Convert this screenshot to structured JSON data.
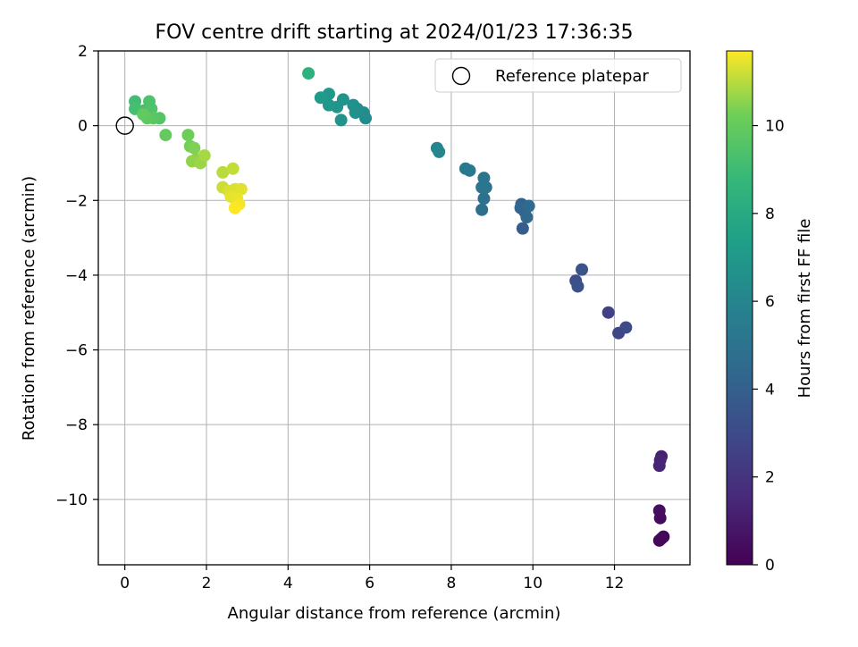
{
  "chart_data": {
    "type": "scatter",
    "title": "FOV centre drift starting at 2024/01/23 17:36:35",
    "xlabel": "Angular distance from reference (arcmin)",
    "ylabel": "Rotation from reference (arcmin)",
    "xlim": [
      -0.65,
      13.85
    ],
    "ylim": [
      -11.75,
      2.0
    ],
    "xticks": [
      0,
      2,
      4,
      6,
      8,
      10,
      12
    ],
    "yticks": [
      2,
      0,
      -2,
      -4,
      -6,
      -8,
      -10
    ],
    "grid": true,
    "colormap": "viridis",
    "colorbar": {
      "label": "Hours from first FF file",
      "range": [
        0,
        11.7
      ],
      "ticks": [
        0,
        2,
        4,
        6,
        8,
        10
      ]
    },
    "legend": {
      "entries": [
        "Reference platepar"
      ],
      "placement": "top-right"
    },
    "reference_point": {
      "x": 0,
      "y": 0
    },
    "points": [
      {
        "x": 13.2,
        "y": -11.0,
        "h": 0.1
      },
      {
        "x": 13.1,
        "y": -11.1,
        "h": 0.2
      },
      {
        "x": 13.15,
        "y": -11.05,
        "h": 0.3
      },
      {
        "x": 13.12,
        "y": -10.5,
        "h": 0.4
      },
      {
        "x": 13.1,
        "y": -10.3,
        "h": 0.5
      },
      {
        "x": 13.15,
        "y": -8.85,
        "h": 1.2
      },
      {
        "x": 13.12,
        "y": -8.95,
        "h": 1.3
      },
      {
        "x": 13.1,
        "y": -9.1,
        "h": 1.4
      },
      {
        "x": 11.85,
        "y": -5.0,
        "h": 2.6
      },
      {
        "x": 12.1,
        "y": -5.55,
        "h": 2.9
      },
      {
        "x": 12.28,
        "y": -5.4,
        "h": 3.0
      },
      {
        "x": 11.05,
        "y": -4.15,
        "h": 3.2
      },
      {
        "x": 11.1,
        "y": -4.3,
        "h": 3.3
      },
      {
        "x": 11.2,
        "y": -3.85,
        "h": 3.4
      },
      {
        "x": 9.75,
        "y": -2.75,
        "h": 3.9
      },
      {
        "x": 9.72,
        "y": -2.1,
        "h": 4.1
      },
      {
        "x": 9.8,
        "y": -2.3,
        "h": 4.2
      },
      {
        "x": 9.7,
        "y": -2.2,
        "h": 4.3
      },
      {
        "x": 9.85,
        "y": -2.45,
        "h": 4.4
      },
      {
        "x": 9.9,
        "y": -2.15,
        "h": 4.5
      },
      {
        "x": 8.75,
        "y": -2.25,
        "h": 4.8
      },
      {
        "x": 8.8,
        "y": -1.95,
        "h": 4.9
      },
      {
        "x": 8.85,
        "y": -1.65,
        "h": 5.0
      },
      {
        "x": 8.8,
        "y": -1.4,
        "h": 5.1
      },
      {
        "x": 8.75,
        "y": -1.65,
        "h": 5.2
      },
      {
        "x": 8.35,
        "y": -1.15,
        "h": 5.3
      },
      {
        "x": 8.45,
        "y": -1.2,
        "h": 5.4
      },
      {
        "x": 7.65,
        "y": -0.6,
        "h": 6.0
      },
      {
        "x": 7.7,
        "y": -0.7,
        "h": 6.1
      },
      {
        "x": 5.9,
        "y": 0.2,
        "h": 6.3
      },
      {
        "x": 5.85,
        "y": 0.35,
        "h": 6.4
      },
      {
        "x": 5.7,
        "y": 0.45,
        "h": 6.5
      },
      {
        "x": 5.65,
        "y": 0.35,
        "h": 6.6
      },
      {
        "x": 5.6,
        "y": 0.55,
        "h": 6.6
      },
      {
        "x": 5.3,
        "y": 0.15,
        "h": 6.7
      },
      {
        "x": 5.2,
        "y": 0.5,
        "h": 6.8
      },
      {
        "x": 5.35,
        "y": 0.7,
        "h": 6.8
      },
      {
        "x": 5.0,
        "y": 0.55,
        "h": 6.9
      },
      {
        "x": 5.0,
        "y": 0.85,
        "h": 7.0
      },
      {
        "x": 4.8,
        "y": 0.75,
        "h": 7.1
      },
      {
        "x": 4.5,
        "y": 1.4,
        "h": 8.4
      },
      {
        "x": 0.25,
        "y": 0.65,
        "h": 9.1
      },
      {
        "x": 0.25,
        "y": 0.45,
        "h": 9.2
      },
      {
        "x": 0.45,
        "y": 0.4,
        "h": 9.3
      },
      {
        "x": 0.6,
        "y": 0.65,
        "h": 9.4
      },
      {
        "x": 0.65,
        "y": 0.45,
        "h": 9.5
      },
      {
        "x": 0.85,
        "y": 0.2,
        "h": 9.6
      },
      {
        "x": 0.7,
        "y": 0.2,
        "h": 9.7
      },
      {
        "x": 0.55,
        "y": 0.2,
        "h": 9.8
      },
      {
        "x": 0.45,
        "y": 0.3,
        "h": 9.9
      },
      {
        "x": 1.0,
        "y": -0.25,
        "h": 10.0
      },
      {
        "x": 1.55,
        "y": -0.25,
        "h": 10.2
      },
      {
        "x": 1.6,
        "y": -0.55,
        "h": 10.3
      },
      {
        "x": 1.7,
        "y": -0.6,
        "h": 10.4
      },
      {
        "x": 1.75,
        "y": -0.9,
        "h": 10.5
      },
      {
        "x": 1.65,
        "y": -0.95,
        "h": 10.6
      },
      {
        "x": 1.85,
        "y": -1.0,
        "h": 10.7
      },
      {
        "x": 1.95,
        "y": -0.8,
        "h": 10.8
      },
      {
        "x": 2.4,
        "y": -1.25,
        "h": 11.0
      },
      {
        "x": 2.65,
        "y": -1.15,
        "h": 11.1
      },
      {
        "x": 2.4,
        "y": -1.65,
        "h": 11.2
      },
      {
        "x": 2.55,
        "y": -1.75,
        "h": 11.3
      },
      {
        "x": 2.7,
        "y": -1.7,
        "h": 11.35
      },
      {
        "x": 2.85,
        "y": -1.7,
        "h": 11.4
      },
      {
        "x": 2.6,
        "y": -1.9,
        "h": 11.45
      },
      {
        "x": 2.75,
        "y": -1.95,
        "h": 11.5
      },
      {
        "x": 2.8,
        "y": -2.1,
        "h": 11.6
      },
      {
        "x": 2.7,
        "y": -2.2,
        "h": 11.7
      }
    ]
  }
}
